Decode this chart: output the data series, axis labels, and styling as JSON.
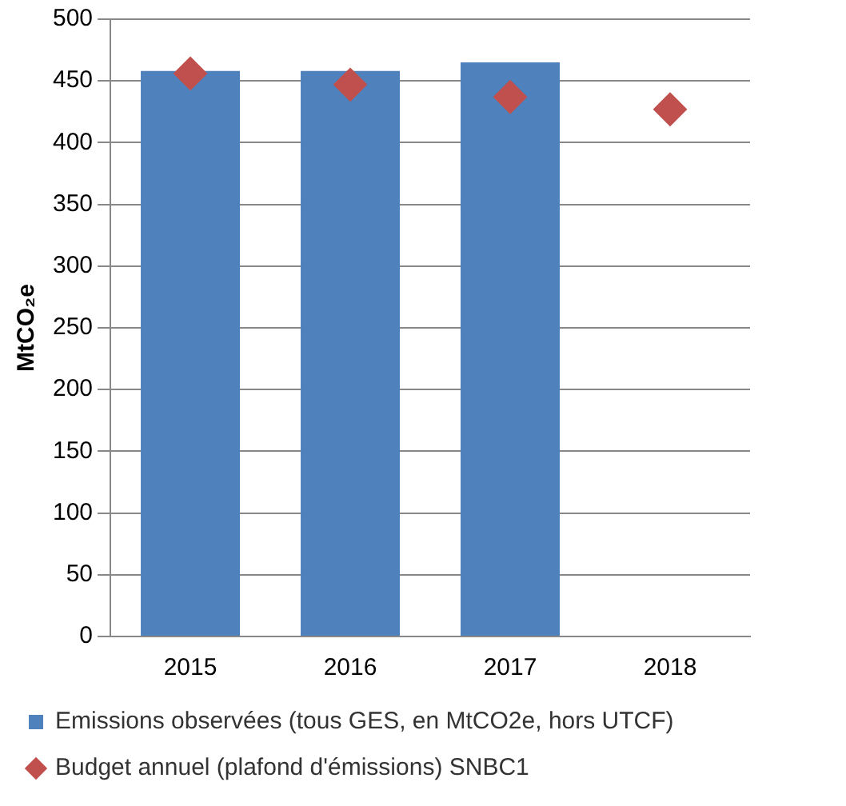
{
  "chart_data": {
    "type": "bar",
    "ylabel": "MtCO₂e",
    "categories": [
      "2015",
      "2016",
      "2017",
      "2018"
    ],
    "series": [
      {
        "name": "Emissions observées (tous GES, en MtCO2e, hors UTCF)",
        "color": "#4f81bd",
        "values": [
          458,
          458,
          465,
          null
        ]
      },
      {
        "name": "Budget annuel (plafond d'émissions) SNBC1",
        "type": "scatter",
        "color": "#c0504d",
        "values": [
          456,
          447,
          437,
          427
        ]
      }
    ],
    "ylim": [
      0,
      500
    ],
    "yticks": [
      0,
      50,
      100,
      150,
      200,
      250,
      300,
      350,
      400,
      450,
      500
    ],
    "grid": "y",
    "legend": "bottom",
    "marker": "diamond"
  }
}
